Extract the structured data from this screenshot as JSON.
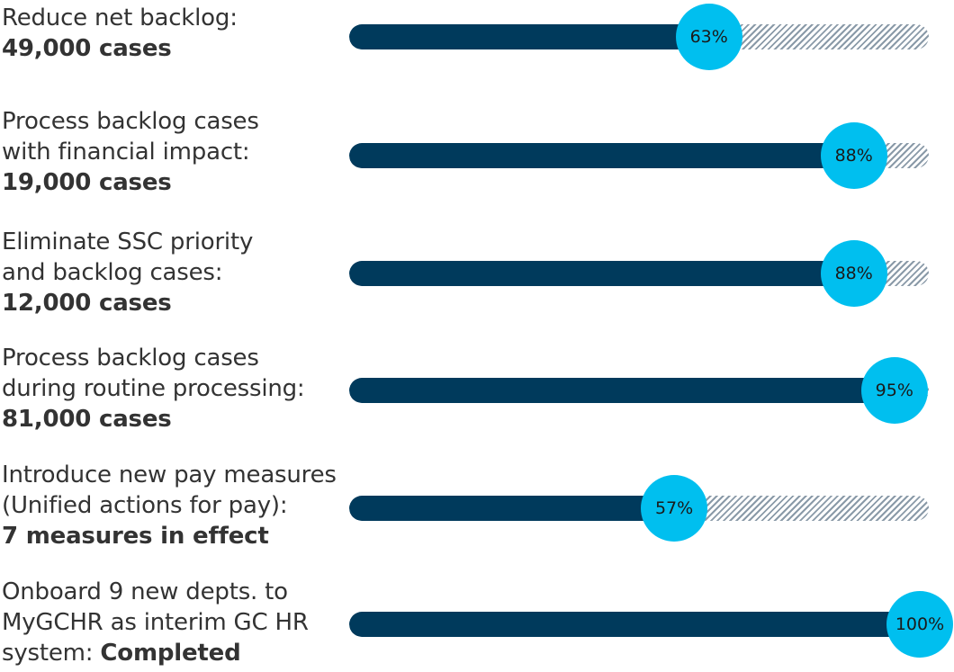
{
  "chart_data": {
    "type": "bar",
    "title": "",
    "xlabel": "",
    "ylabel": "",
    "xlim": [
      0,
      100
    ],
    "colors": {
      "complete": "#003a5c",
      "remaining_hatch": "#8a9aa8",
      "marker": "#00bfef"
    },
    "rows": [
      {
        "lines": [
          {
            "text": "Reduce net backlog:",
            "bold": ""
          },
          {
            "text": "",
            "bold": "49,000 cases"
          }
        ],
        "value": 63,
        "value_label": "63%"
      },
      {
        "lines": [
          {
            "text": "Process backlog cases",
            "bold": ""
          },
          {
            "text": "with financial impact:",
            "bold": ""
          },
          {
            "text": "",
            "bold": "19,000 cases"
          }
        ],
        "value": 88,
        "value_label": "88%"
      },
      {
        "lines": [
          {
            "text": "Eliminate SSC priority",
            "bold": ""
          },
          {
            "text": "and backlog cases:",
            "bold": ""
          },
          {
            "text": "",
            "bold": "12,000 cases"
          }
        ],
        "value": 88,
        "value_label": "88%"
      },
      {
        "lines": [
          {
            "text": "Process backlog cases",
            "bold": ""
          },
          {
            "text": "during routine processing:",
            "bold": ""
          },
          {
            "text": "",
            "bold": "81,000 cases"
          }
        ],
        "value": 95,
        "value_label": "95%"
      },
      {
        "lines": [
          {
            "text": "Introduce new pay measures",
            "bold": ""
          },
          {
            "text": "(Unified actions for pay):",
            "bold": ""
          },
          {
            "text": "",
            "bold": "7 measures in effect"
          }
        ],
        "value": 57,
        "value_label": "57%"
      },
      {
        "lines": [
          {
            "text": "Onboard 9 new depts. to",
            "bold": ""
          },
          {
            "text": "MyGCHR as interim GC HR",
            "bold": ""
          },
          {
            "text": "system: ",
            "bold": "Completed"
          }
        ],
        "value": 100,
        "value_label": "100%"
      }
    ]
  }
}
